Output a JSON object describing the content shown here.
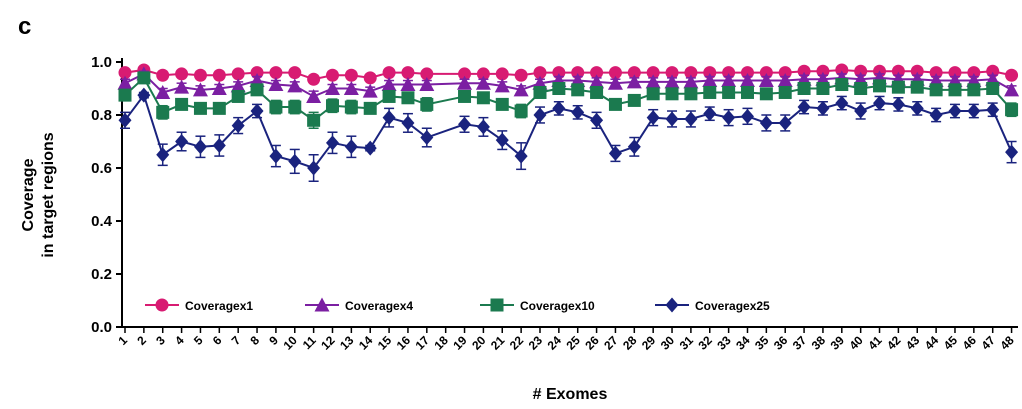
{
  "panel_label": "c",
  "chart_data": {
    "type": "line",
    "xlabel": "# Exomes",
    "ylabel_lines": [
      "Coverage",
      "in target regions"
    ],
    "ylim": [
      0,
      1.0
    ],
    "y_ticks": [
      0.0,
      0.2,
      0.4,
      0.6,
      0.8,
      1.0
    ],
    "y_tick_labels": [
      "0.0",
      "0.2",
      "0.4",
      "0.6",
      "0.8",
      "1.0"
    ],
    "x": [
      1,
      2,
      3,
      4,
      5,
      6,
      7,
      8,
      9,
      10,
      11,
      12,
      13,
      14,
      15,
      16,
      17,
      18,
      19,
      20,
      21,
      22,
      23,
      24,
      25,
      26,
      27,
      28,
      29,
      30,
      31,
      32,
      33,
      34,
      35,
      36,
      37,
      38,
      39,
      40,
      41,
      42,
      43,
      44,
      45,
      46,
      47,
      48
    ],
    "x_tick_labels": [
      "1",
      "2",
      "3",
      "4",
      "5",
      "6",
      "7",
      "8",
      "9",
      "10",
      "11",
      "12",
      "13",
      "14",
      "15",
      "16",
      "17",
      "18",
      "19",
      "20",
      "21",
      "22",
      "23",
      "24",
      "25",
      "26",
      "27",
      "28",
      "29",
      "30",
      "31",
      "32",
      "33",
      "34",
      "35",
      "36",
      "37",
      "38",
      "39",
      "40",
      "41",
      "42",
      "43",
      "44",
      "45",
      "46",
      "47",
      "48"
    ],
    "missing_x": [
      18
    ],
    "grid": false,
    "legend_position": "bottom-left",
    "series": [
      {
        "name": "Coveragex1",
        "color": "#d81b72",
        "marker": "circle",
        "values": [
          0.96,
          0.97,
          0.95,
          0.955,
          0.95,
          0.95,
          0.955,
          0.96,
          0.96,
          0.96,
          0.935,
          0.95,
          0.95,
          0.94,
          0.96,
          0.96,
          0.955,
          null,
          0.955,
          0.955,
          0.955,
          0.95,
          0.96,
          0.96,
          0.96,
          0.96,
          0.96,
          0.96,
          0.96,
          0.96,
          0.96,
          0.96,
          0.96,
          0.96,
          0.96,
          0.96,
          0.965,
          0.965,
          0.97,
          0.965,
          0.965,
          0.965,
          0.965,
          0.96,
          0.96,
          0.96,
          0.965,
          0.95
        ],
        "errors": [
          0.01,
          0.01,
          0.01,
          0.01,
          0.01,
          0.01,
          0.01,
          0.01,
          0.01,
          0.01,
          0.01,
          0.01,
          0.01,
          0.01,
          0.01,
          0.01,
          0.01,
          null,
          0.01,
          0.01,
          0.01,
          0.01,
          0.01,
          0.01,
          0.01,
          0.01,
          0.01,
          0.01,
          0.01,
          0.01,
          0.01,
          0.01,
          0.01,
          0.01,
          0.01,
          0.01,
          0.01,
          0.01,
          0.01,
          0.01,
          0.01,
          0.01,
          0.01,
          0.01,
          0.01,
          0.01,
          0.01,
          0.01
        ]
      },
      {
        "name": "Coveragex4",
        "color": "#7b1fa2",
        "marker": "triangle",
        "values": [
          0.92,
          0.955,
          0.885,
          0.905,
          0.895,
          0.9,
          0.91,
          0.93,
          0.915,
          0.91,
          0.87,
          0.9,
          0.9,
          0.89,
          0.915,
          0.915,
          0.915,
          null,
          0.92,
          0.92,
          0.91,
          0.895,
          0.92,
          0.93,
          0.93,
          0.925,
          0.92,
          0.925,
          0.925,
          0.925,
          0.925,
          0.93,
          0.93,
          0.93,
          0.93,
          0.93,
          0.935,
          0.935,
          0.94,
          0.935,
          0.94,
          0.935,
          0.935,
          0.93,
          0.93,
          0.93,
          0.935,
          0.895
        ],
        "errors": [
          0.015,
          0.01,
          0.015,
          0.015,
          0.015,
          0.015,
          0.015,
          0.015,
          0.015,
          0.015,
          0.02,
          0.015,
          0.015,
          0.015,
          0.015,
          0.015,
          0.015,
          null,
          0.015,
          0.015,
          0.015,
          0.015,
          0.015,
          0.015,
          0.015,
          0.015,
          0.015,
          0.015,
          0.015,
          0.015,
          0.015,
          0.015,
          0.015,
          0.015,
          0.015,
          0.015,
          0.015,
          0.015,
          0.015,
          0.015,
          0.015,
          0.015,
          0.015,
          0.015,
          0.015,
          0.015,
          0.015,
          0.015
        ]
      },
      {
        "name": "Coveragex10",
        "color": "#1b7a4f",
        "marker": "square",
        "values": [
          0.875,
          0.94,
          0.81,
          0.84,
          0.825,
          0.825,
          0.87,
          0.895,
          0.83,
          0.83,
          0.78,
          0.835,
          0.83,
          0.825,
          0.87,
          0.865,
          0.84,
          null,
          0.87,
          0.865,
          0.84,
          0.815,
          0.885,
          0.9,
          0.895,
          0.885,
          0.84,
          0.855,
          0.88,
          0.88,
          0.88,
          0.885,
          0.885,
          0.885,
          0.88,
          0.885,
          0.9,
          0.9,
          0.915,
          0.9,
          0.91,
          0.905,
          0.905,
          0.895,
          0.895,
          0.895,
          0.9,
          0.82
        ],
        "errors": [
          0.02,
          0.015,
          0.025,
          0.02,
          0.02,
          0.02,
          0.02,
          0.02,
          0.025,
          0.025,
          0.03,
          0.025,
          0.025,
          0.02,
          0.02,
          0.02,
          0.025,
          null,
          0.02,
          0.02,
          0.02,
          0.025,
          0.02,
          0.02,
          0.02,
          0.02,
          0.02,
          0.02,
          0.02,
          0.02,
          0.02,
          0.02,
          0.02,
          0.02,
          0.02,
          0.02,
          0.02,
          0.02,
          0.02,
          0.02,
          0.02,
          0.02,
          0.02,
          0.02,
          0.02,
          0.02,
          0.02,
          0.025
        ]
      },
      {
        "name": "Coveragex25",
        "color": "#1a237e",
        "marker": "diamond",
        "values": [
          0.78,
          0.875,
          0.65,
          0.7,
          0.68,
          0.685,
          0.76,
          0.815,
          0.645,
          0.625,
          0.6,
          0.695,
          0.68,
          0.675,
          0.79,
          0.77,
          0.715,
          null,
          0.765,
          0.755,
          0.705,
          0.645,
          0.8,
          0.825,
          0.81,
          0.78,
          0.655,
          0.68,
          0.79,
          0.785,
          0.785,
          0.805,
          0.79,
          0.795,
          0.77,
          0.77,
          0.83,
          0.825,
          0.845,
          0.815,
          0.845,
          0.84,
          0.825,
          0.8,
          0.815,
          0.815,
          0.82,
          0.66
        ],
        "errors": [
          0.03,
          0.01,
          0.04,
          0.035,
          0.04,
          0.04,
          0.03,
          0.025,
          0.04,
          0.045,
          0.05,
          0.04,
          0.04,
          0.01,
          0.035,
          0.035,
          0.035,
          null,
          0.03,
          0.035,
          0.035,
          0.05,
          0.03,
          0.025,
          0.025,
          0.03,
          0.03,
          0.035,
          0.03,
          0.03,
          0.03,
          0.025,
          0.03,
          0.03,
          0.03,
          0.03,
          0.025,
          0.025,
          0.025,
          0.03,
          0.025,
          0.025,
          0.025,
          0.025,
          0.025,
          0.025,
          0.025,
          0.04
        ]
      }
    ]
  }
}
